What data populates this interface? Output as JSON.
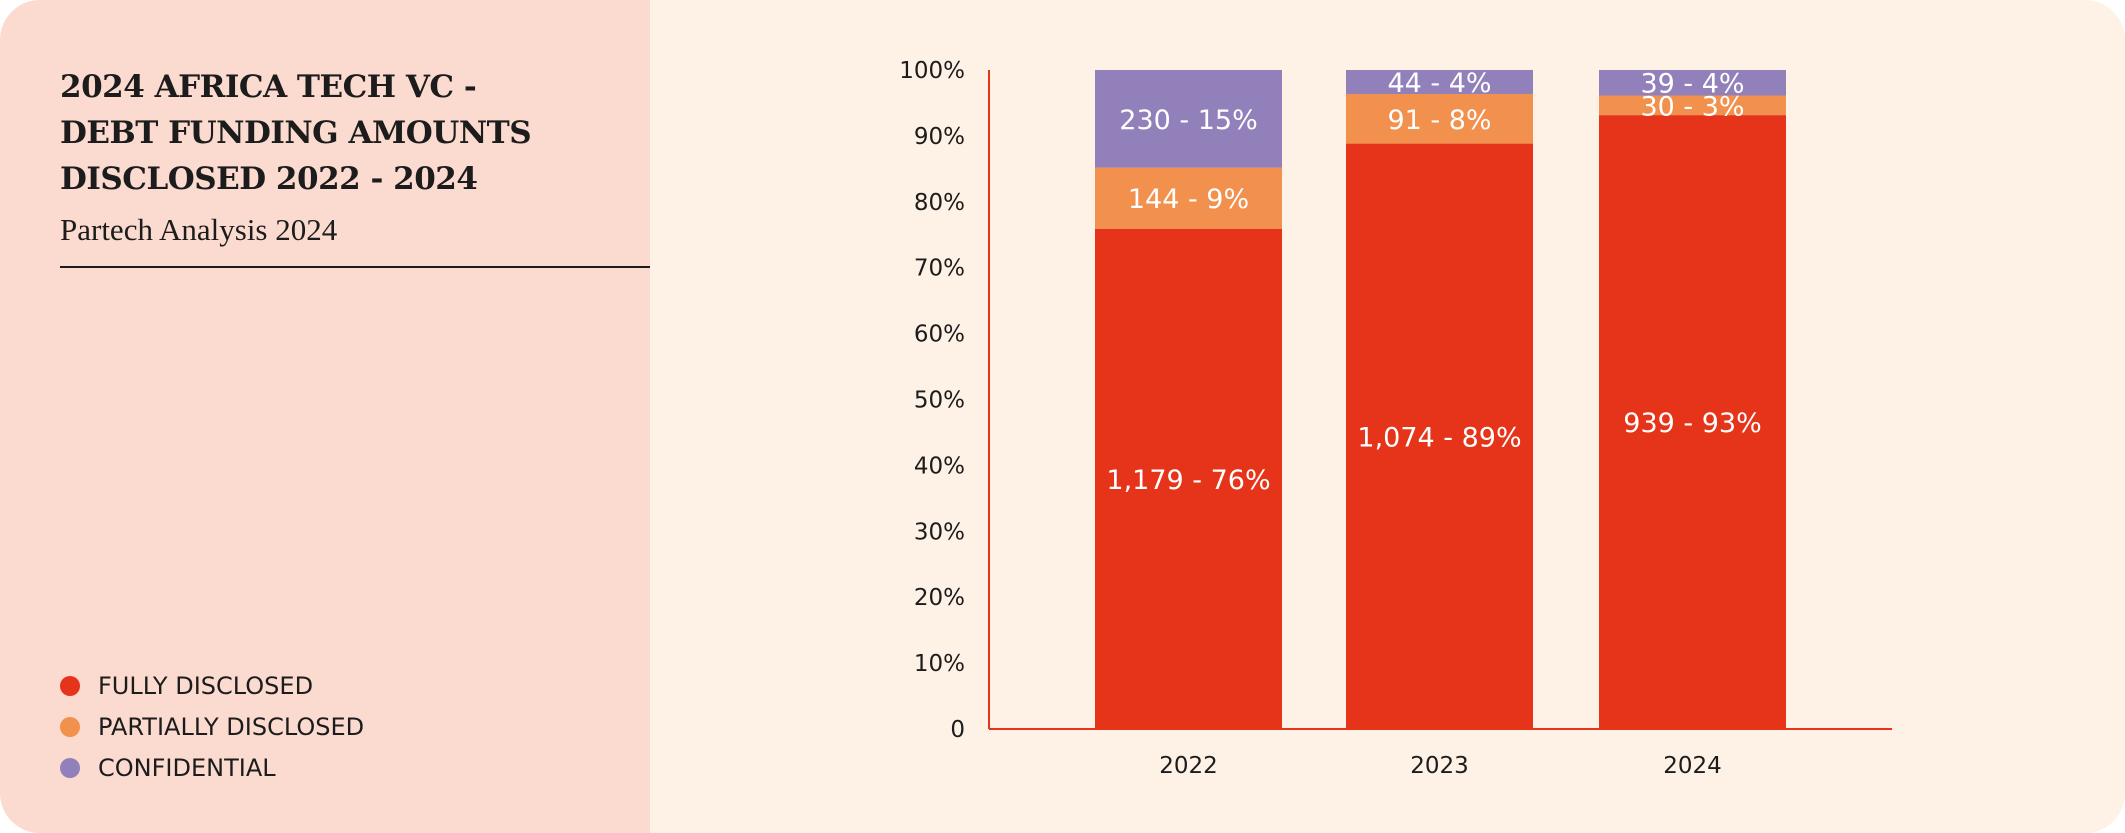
{
  "header": {
    "title_lines": [
      "2024 AFRICA TECH VC -",
      "DEBT FUNDING AMOUNTS",
      "DISCLOSED 2022 - 2024"
    ],
    "subtitle": "Partech Analysis 2024"
  },
  "legend": [
    {
      "label": "FULLY DISCLOSED",
      "color": "#E5341A"
    },
    {
      "label": "PARTIALLY DISCLOSED",
      "color": "#F2904D"
    },
    {
      "label": "CONFIDENTIAL",
      "color": "#9180BA"
    }
  ],
  "chart_data": {
    "type": "bar",
    "stacked": true,
    "normalized": true,
    "categories": [
      "2022",
      "2023",
      "2024"
    ],
    "series": [
      {
        "name": "FULLY DISCLOSED",
        "color": "#E5341A",
        "values": [
          1179,
          1074,
          939
        ],
        "labels": [
          "1,179 - 76%",
          "1,074 - 89%",
          "939 - 93%"
        ]
      },
      {
        "name": "PARTIALLY DISCLOSED",
        "color": "#F2904D",
        "values": [
          144,
          91,
          30
        ],
        "labels": [
          "144 - 9%",
          "91 - 8%",
          "30 - 3%"
        ]
      },
      {
        "name": "CONFIDENTIAL",
        "color": "#9180BA",
        "values": [
          230,
          44,
          39
        ],
        "labels": [
          "230 - 15%",
          "44 - 4%",
          "39 - 4%"
        ]
      }
    ],
    "yticks": [
      "0",
      "10%",
      "20%",
      "30%",
      "40%",
      "50%",
      "60%",
      "70%",
      "80%",
      "90%",
      "100%"
    ],
    "ylim": [
      0,
      100
    ],
    "grid": false,
    "axis_color": "#E5341A",
    "legend_placement": "bottom-left"
  }
}
